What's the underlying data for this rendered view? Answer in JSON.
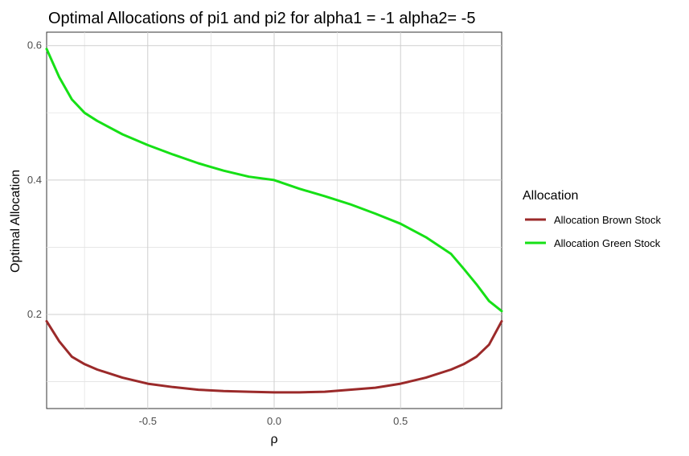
{
  "chart_data": {
    "type": "line",
    "title": "Optimal Allocations of pi1 and pi2 for alpha1 = -1 alpha2= -5",
    "xlabel": "ρ",
    "ylabel": "Optimal Allocation",
    "xlim": [
      -0.9,
      0.9
    ],
    "ylim": [
      0.06,
      0.62
    ],
    "x_ticks": [
      -0.5,
      0.0,
      0.5
    ],
    "x_tick_labels": [
      "-0.5",
      "0.0",
      "0.5"
    ],
    "y_ticks": [
      0.2,
      0.4,
      0.6
    ],
    "y_tick_labels": [
      "0.2",
      "0.4",
      "0.6"
    ],
    "x_minor_ticks": [
      -0.75,
      -0.25,
      0.25,
      0.75
    ],
    "y_minor_ticks": [
      0.1,
      0.3,
      0.5
    ],
    "grid": true,
    "legend": {
      "title": "Allocation",
      "position": "right"
    },
    "series": [
      {
        "name": "Allocation Brown Stock",
        "color": "#9b2a2a",
        "x": [
          -0.9,
          -0.85,
          -0.8,
          -0.75,
          -0.7,
          -0.6,
          -0.5,
          -0.4,
          -0.3,
          -0.2,
          -0.1,
          0.0,
          0.1,
          0.2,
          0.3,
          0.4,
          0.5,
          0.6,
          0.7,
          0.75,
          0.8,
          0.85,
          0.9
        ],
        "y": [
          0.19,
          0.16,
          0.137,
          0.126,
          0.118,
          0.106,
          0.097,
          0.092,
          0.088,
          0.086,
          0.085,
          0.084,
          0.084,
          0.085,
          0.088,
          0.091,
          0.097,
          0.106,
          0.118,
          0.126,
          0.137,
          0.155,
          0.19
        ]
      },
      {
        "name": "Allocation Green Stock",
        "color": "#16e016",
        "x": [
          -0.9,
          -0.85,
          -0.8,
          -0.75,
          -0.7,
          -0.6,
          -0.5,
          -0.4,
          -0.3,
          -0.2,
          -0.1,
          0.0,
          0.1,
          0.2,
          0.3,
          0.4,
          0.5,
          0.6,
          0.7,
          0.75,
          0.8,
          0.85,
          0.9
        ],
        "y": [
          0.595,
          0.553,
          0.52,
          0.5,
          0.488,
          0.468,
          0.452,
          0.438,
          0.425,
          0.414,
          0.405,
          0.4,
          0.387,
          0.376,
          0.364,
          0.35,
          0.335,
          0.315,
          0.29,
          0.268,
          0.245,
          0.22,
          0.205
        ]
      }
    ]
  }
}
